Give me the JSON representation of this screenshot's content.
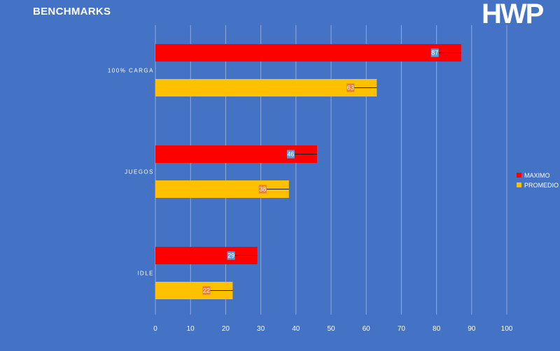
{
  "header": {
    "title": "BENCHMARKS",
    "logo_text": "HWP"
  },
  "chart_data": {
    "type": "bar",
    "orientation": "horizontal",
    "title": "BENCHMARKS",
    "categories": [
      "100% CARGA",
      "JUEGOS",
      "IDLE"
    ],
    "series": [
      {
        "name": "MAXIMO",
        "color": "#ff0000",
        "label_bg": "#5b9bd5",
        "values": [
          87,
          46,
          29
        ]
      },
      {
        "name": "PROMEDIO",
        "color": "#ffc000",
        "label_bg": "#ed7d31",
        "values": [
          63,
          38,
          22
        ]
      }
    ],
    "xlim": [
      0,
      100
    ],
    "x_ticks": [
      0,
      10,
      20,
      30,
      40,
      50,
      60,
      70,
      80,
      90,
      100
    ],
    "grid": true,
    "legend_position": "right",
    "data_labels": true
  }
}
